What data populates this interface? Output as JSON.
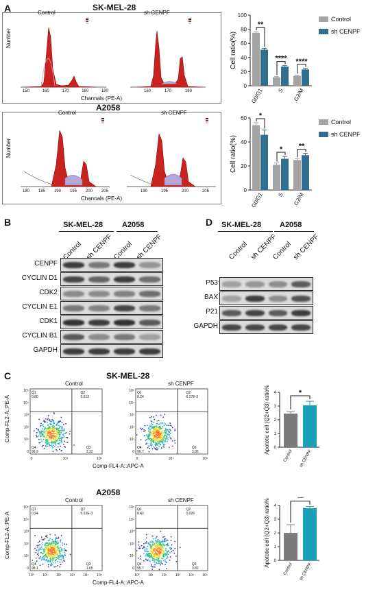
{
  "panels": {
    "A": {
      "letter": "A",
      "rows": [
        {
          "title": "SK-MEL-28",
          "hist_left_label": "Control",
          "hist_right_label": "sh CENPF",
          "hist_left_ticks": [
            "150",
            "160",
            "170",
            "180",
            "190"
          ],
          "hist_right_ticks": [
            "160",
            "170",
            "180"
          ],
          "ylabel": "Number",
          "xlabel": "Channals (PE-A)"
        },
        {
          "title": "A2058",
          "hist_left_label": "Control",
          "hist_right_label": "sh CENPF",
          "hist_left_ticks": [
            "180",
            "185",
            "190",
            "195",
            "200",
            "205"
          ],
          "hist_right_ticks": [
            "190",
            "195",
            "200",
            "205"
          ],
          "ylabel": "Number",
          "xlabel": "Channals (PE-A)"
        }
      ]
    },
    "B": {
      "letter": "B",
      "cell_lines": [
        "SK-MEL-28",
        "A2058"
      ],
      "columns": [
        "Control",
        "sh CENPF",
        "Control",
        "sh CENPF"
      ],
      "rows": [
        "CENPF",
        "CYCLIN D1",
        "CDK2",
        "CYCLIN E1",
        "CDK1",
        "CYCLIN B1",
        "GAPDH"
      ]
    },
    "C": {
      "letter": "C",
      "rows": [
        {
          "title": "SK-MEL-28",
          "left_label": "Control",
          "right_label": "sh CENPF",
          "left_quadrants": {
            "q1": "Q1",
            "q1v": "0.80",
            "q2": "Q2",
            "q2v": "0.013",
            "q3": "Q3",
            "q3v": "2.32",
            "q4": "Q4",
            "q4v": "96.9"
          },
          "right_quadrants": {
            "q1": "Q1",
            "q1v": "0.24",
            "q2": "Q2",
            "q2v": "6.27E-3",
            "q3": "Q3",
            "q3v": "3.05",
            "q4": "Q4",
            "q4v": "96.7"
          },
          "yticks": [
            "10⁵",
            "10⁴",
            "10³",
            "10²",
            "10¹",
            "0"
          ],
          "xticks_left": [
            "0",
            "10⁴",
            "10⁵"
          ],
          "xticks_right": [
            "0",
            "10⁴",
            "10⁵"
          ],
          "ylabel": "Comp-FL2-A::PE-A",
          "xlabel": "Comp-FL4-A::APC-A"
        },
        {
          "title": "A2058",
          "left_label": "Control",
          "right_label": "sh CENPF",
          "left_quadrants": {
            "q1": "Q1",
            "q1v": "0.24",
            "q2": "Q2",
            "q2v": "5.02E-3",
            "q3": "Q3",
            "q3v": "1.65",
            "q4": "Q4",
            "q4v": "98.1"
          },
          "right_quadrants": {
            "q1": "Q1",
            "q1v": "0.43",
            "q2": "Q2",
            "q2v": "0.026",
            "q3": "Q3",
            "q3v": "3.82",
            "q4": "Q4",
            "q4v": "95.7"
          },
          "yticks": [
            "10⁵",
            "10⁴",
            "10³",
            "10²",
            "10¹",
            "0"
          ],
          "xticks_left": [
            "10⁰",
            "10¹",
            "10²",
            "10³",
            "10⁴",
            "10⁵"
          ],
          "xticks_right": [
            "10⁰",
            "10¹",
            "10²",
            "10³",
            "10⁴",
            "10⁵"
          ],
          "ylabel": "Comp-FL2-A::PE-A",
          "xlabel": "Comp-FL4-A::APC-A"
        }
      ]
    },
    "D": {
      "letter": "D",
      "cell_lines": [
        "SK-MEL-28",
        "A2058"
      ],
      "columns": [
        "Control",
        "sh CENPF",
        "Control",
        "sh CENPF"
      ],
      "rows": [
        "P53",
        "BAX",
        "P21",
        "GAPDH"
      ]
    }
  },
  "colors": {
    "control": "#a3a3a3",
    "sh": "#336e8f",
    "apo_control": "#7b7b7b",
    "apo_sh": "#1aa1b8"
  },
  "chart_data": [
    {
      "type": "bar",
      "categories": [
        "G0/G1",
        "S",
        "G2/M"
      ],
      "series": [
        {
          "name": "Control",
          "values": [
            75,
            12,
            14
          ],
          "errors": [
            1.5,
            1,
            1
          ]
        },
        {
          "name": "sh CENPF",
          "values": [
            51,
            27,
            23
          ],
          "errors": [
            2,
            1.5,
            1.5
          ]
        }
      ],
      "ylabel": "Cell ratio(%)",
      "ylim": [
        0,
        100
      ],
      "yticks": [
        "0",
        "20",
        "40",
        "60",
        "80",
        "100"
      ],
      "significance": [
        "**",
        "****",
        "****"
      ],
      "legend": "right"
    },
    {
      "type": "bar",
      "categories": [
        "G0/G1",
        "S",
        "G2/M"
      ],
      "series": [
        {
          "name": "Control",
          "values": [
            54,
            21,
            25
          ],
          "errors": [
            2,
            1.5,
            1
          ]
        },
        {
          "name": "sh CENPF",
          "values": [
            46,
            26,
            29
          ],
          "errors": [
            4,
            2,
            1.5
          ]
        }
      ],
      "ylabel": "Cell ratio(%)",
      "ylim": [
        0,
        60
      ],
      "yticks": [
        "0",
        "20",
        "40",
        "60"
      ],
      "significance": [
        "*",
        "*",
        "**"
      ],
      "legend": "right"
    },
    {
      "type": "bar",
      "categories": [
        "Control",
        "sh CENPF"
      ],
      "values": [
        2.45,
        3.05
      ],
      "errors": [
        0.15,
        0.3
      ],
      "ylabel": "Apototic cell (Q2+Q3) ratio%",
      "ylim": [
        0,
        4
      ],
      "yticks": [
        "0",
        "1",
        "2",
        "3",
        "4"
      ],
      "significance": [
        "*"
      ]
    },
    {
      "type": "bar",
      "categories": [
        "Control",
        "sh CENPF"
      ],
      "values": [
        2.0,
        3.8
      ],
      "errors": [
        0.6,
        0.12
      ],
      "ylabel": "Apototic cell (Q2+Q3) ratio%",
      "ylim": [
        0,
        4
      ],
      "yticks": [
        "0",
        "1",
        "2",
        "3",
        "4"
      ],
      "significance": [
        "**"
      ]
    }
  ]
}
